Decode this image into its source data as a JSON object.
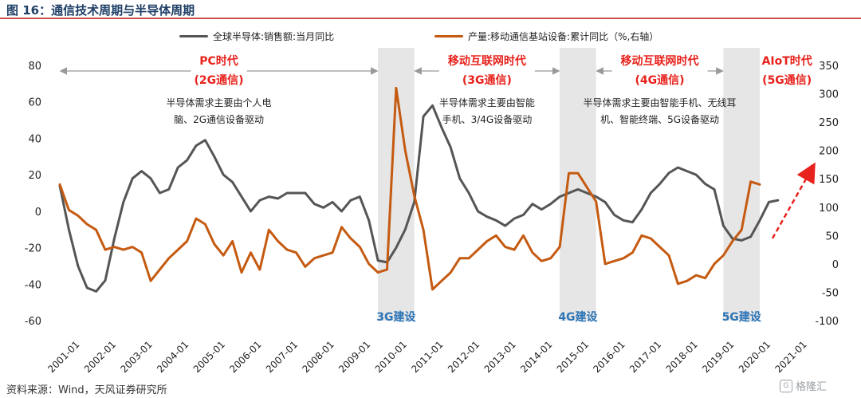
{
  "figure": {
    "title": "图 16：通信技术周期与半导体周期",
    "source": "资料来源：Wind，天风证券研究所",
    "watermark": "格隆汇"
  },
  "colors": {
    "gray_series": "#555555",
    "orange_series": "#c55a11",
    "era_red": "#e8221c",
    "build_blue": "#2e75b6",
    "shade": "#e6e6e6",
    "arrow_gray": "#999999",
    "title_rule": "#c9504a"
  },
  "chart_data": {
    "type": "line",
    "x_ticks": [
      "2001-01",
      "2002-01",
      "2003-01",
      "2004-01",
      "2005-01",
      "2006-01",
      "2007-01",
      "2008-01",
      "2009-01",
      "2010-01",
      "2011-01",
      "2012-01",
      "2013-01",
      "2014-01",
      "2015-01",
      "2016-01",
      "2017-01",
      "2018-01",
      "2019-01",
      "2020-01",
      "2021-01"
    ],
    "y_left": {
      "ticks": [
        80,
        60,
        40,
        20,
        0,
        -20,
        -40,
        -60
      ],
      "range": [
        -60,
        80
      ]
    },
    "y_right": {
      "ticks": [
        350,
        300,
        250,
        200,
        150,
        100,
        50,
        0,
        -50,
        -100
      ],
      "range": [
        -100,
        350
      ]
    },
    "series": [
      {
        "name": "全球半导体:销售额:当月同比",
        "axis": "left",
        "points": [
          [
            2001.0,
            14
          ],
          [
            2001.25,
            -10
          ],
          [
            2001.5,
            -30
          ],
          [
            2001.75,
            -42
          ],
          [
            2002.0,
            -44
          ],
          [
            2002.25,
            -38
          ],
          [
            2002.5,
            -15
          ],
          [
            2002.75,
            5
          ],
          [
            2003.0,
            18
          ],
          [
            2003.25,
            22
          ],
          [
            2003.5,
            18
          ],
          [
            2003.75,
            10
          ],
          [
            2004.0,
            12
          ],
          [
            2004.25,
            24
          ],
          [
            2004.5,
            28
          ],
          [
            2004.75,
            36
          ],
          [
            2005.0,
            39
          ],
          [
            2005.25,
            30
          ],
          [
            2005.5,
            20
          ],
          [
            2005.75,
            16
          ],
          [
            2006.0,
            8
          ],
          [
            2006.25,
            0
          ],
          [
            2006.5,
            6
          ],
          [
            2006.75,
            8
          ],
          [
            2007.0,
            7
          ],
          [
            2007.25,
            10
          ],
          [
            2007.5,
            10
          ],
          [
            2007.75,
            10
          ],
          [
            2008.0,
            4
          ],
          [
            2008.25,
            2
          ],
          [
            2008.5,
            5
          ],
          [
            2008.75,
            0
          ],
          [
            2009.0,
            6
          ],
          [
            2009.25,
            8
          ],
          [
            2009.5,
            -5
          ],
          [
            2009.75,
            -27
          ],
          [
            2010.0,
            -28
          ],
          [
            2010.25,
            -20
          ],
          [
            2010.5,
            -10
          ],
          [
            2010.75,
            5
          ],
          [
            2011.0,
            52
          ],
          [
            2011.25,
            58
          ],
          [
            2011.5,
            46
          ],
          [
            2011.75,
            35
          ],
          [
            2012.0,
            18
          ],
          [
            2012.25,
            10
          ],
          [
            2012.5,
            0
          ],
          [
            2012.75,
            -3
          ],
          [
            2013.0,
            -5
          ],
          [
            2013.25,
            -8
          ],
          [
            2013.5,
            -4
          ],
          [
            2013.75,
            -2
          ],
          [
            2014.0,
            4
          ],
          [
            2014.25,
            1
          ],
          [
            2014.5,
            4
          ],
          [
            2014.75,
            8
          ],
          [
            2015.0,
            10
          ],
          [
            2015.25,
            12
          ],
          [
            2015.5,
            10
          ],
          [
            2015.75,
            8
          ],
          [
            2016.0,
            5
          ],
          [
            2016.25,
            -2
          ],
          [
            2016.5,
            -5
          ],
          [
            2016.75,
            -6
          ],
          [
            2017.0,
            1
          ],
          [
            2017.25,
            10
          ],
          [
            2017.5,
            15
          ],
          [
            2017.75,
            21
          ],
          [
            2018.0,
            24
          ],
          [
            2018.25,
            22
          ],
          [
            2018.5,
            20
          ],
          [
            2018.75,
            15
          ],
          [
            2019.0,
            12
          ],
          [
            2019.25,
            -8
          ],
          [
            2019.5,
            -15
          ],
          [
            2019.75,
            -16
          ],
          [
            2020.0,
            -14
          ],
          [
            2020.25,
            -5
          ],
          [
            2020.5,
            5
          ],
          [
            2020.75,
            6
          ]
        ]
      },
      {
        "name": "产量:移动通信基站设备:累计同比（%,右轴）",
        "axis": "right",
        "points": [
          [
            2001.0,
            140
          ],
          [
            2001.25,
            95
          ],
          [
            2001.5,
            85
          ],
          [
            2001.75,
            70
          ],
          [
            2002.0,
            60
          ],
          [
            2002.25,
            25
          ],
          [
            2002.5,
            30
          ],
          [
            2002.75,
            25
          ],
          [
            2003.0,
            30
          ],
          [
            2003.25,
            20
          ],
          [
            2003.5,
            -30
          ],
          [
            2003.75,
            -10
          ],
          [
            2004.0,
            10
          ],
          [
            2004.25,
            25
          ],
          [
            2004.5,
            40
          ],
          [
            2004.75,
            80
          ],
          [
            2005.0,
            70
          ],
          [
            2005.25,
            35
          ],
          [
            2005.5,
            15
          ],
          [
            2005.75,
            40
          ],
          [
            2006.0,
            -15
          ],
          [
            2006.25,
            20
          ],
          [
            2006.5,
            -10
          ],
          [
            2006.75,
            60
          ],
          [
            2007.0,
            40
          ],
          [
            2007.25,
            25
          ],
          [
            2007.5,
            20
          ],
          [
            2007.75,
            -5
          ],
          [
            2008.0,
            10
          ],
          [
            2008.25,
            15
          ],
          [
            2008.5,
            20
          ],
          [
            2008.75,
            65
          ],
          [
            2009.0,
            45
          ],
          [
            2009.25,
            30
          ],
          [
            2009.5,
            0
          ],
          [
            2009.75,
            -15
          ],
          [
            2010.0,
            -10
          ],
          [
            2010.25,
            310
          ],
          [
            2010.5,
            200
          ],
          [
            2010.75,
            120
          ],
          [
            2011.0,
            60
          ],
          [
            2011.25,
            -45
          ],
          [
            2011.5,
            -30
          ],
          [
            2011.75,
            -15
          ],
          [
            2012.0,
            10
          ],
          [
            2012.25,
            10
          ],
          [
            2012.5,
            25
          ],
          [
            2012.75,
            40
          ],
          [
            2013.0,
            50
          ],
          [
            2013.25,
            30
          ],
          [
            2013.5,
            25
          ],
          [
            2013.75,
            50
          ],
          [
            2014.0,
            20
          ],
          [
            2014.25,
            5
          ],
          [
            2014.5,
            10
          ],
          [
            2014.75,
            30
          ],
          [
            2015.0,
            160
          ],
          [
            2015.25,
            160
          ],
          [
            2015.5,
            135
          ],
          [
            2015.75,
            110
          ],
          [
            2016.0,
            0
          ],
          [
            2016.25,
            5
          ],
          [
            2016.5,
            10
          ],
          [
            2016.75,
            20
          ],
          [
            2017.0,
            50
          ],
          [
            2017.25,
            45
          ],
          [
            2017.5,
            30
          ],
          [
            2017.75,
            15
          ],
          [
            2018.0,
            -35
          ],
          [
            2018.25,
            -30
          ],
          [
            2018.5,
            -20
          ],
          [
            2018.75,
            -25
          ],
          [
            2019.0,
            0
          ],
          [
            2019.25,
            15
          ],
          [
            2019.5,
            40
          ],
          [
            2019.75,
            60
          ],
          [
            2020.0,
            145
          ],
          [
            2020.25,
            140
          ]
        ]
      }
    ],
    "shaded_periods": [
      {
        "start": 2009.75,
        "end": 2010.75,
        "label": "3G建设"
      },
      {
        "start": 2014.75,
        "end": 2015.75,
        "label": "4G建设"
      },
      {
        "start": 2019.25,
        "end": 2020.25,
        "label": "5G建设"
      }
    ],
    "eras": [
      {
        "title": "PC时代",
        "subtitle": "(2G通信)",
        "desc1": "半导体需求主要由个人电",
        "desc2": "脑、2G通信设备驱动",
        "x_start": 2001.0,
        "x_end": 2009.75
      },
      {
        "title": "移动互联网时代",
        "subtitle": "(3G通信)",
        "desc1": "半导体需求主要由智能",
        "desc2": "手机、3/4G设备驱动",
        "x_start": 2010.75,
        "x_end": 2014.75
      },
      {
        "title": "移动互联网时代",
        "subtitle": "(4G通信)",
        "desc1": "半导体需求主要由智能手机、无线耳",
        "desc2": "机、智能终端、5G设备驱动",
        "x_start": 2015.75,
        "x_end": 2019.25
      },
      {
        "title": "AIoT时代",
        "subtitle": "(5G通信)",
        "desc1": "",
        "desc2": "",
        "x_start": 2020.25,
        "x_end": 2021.75
      }
    ],
    "trend_arrow": {
      "from": [
        2020.6,
        45
      ],
      "to": [
        2021.7,
        170
      ],
      "axis": "right"
    }
  }
}
